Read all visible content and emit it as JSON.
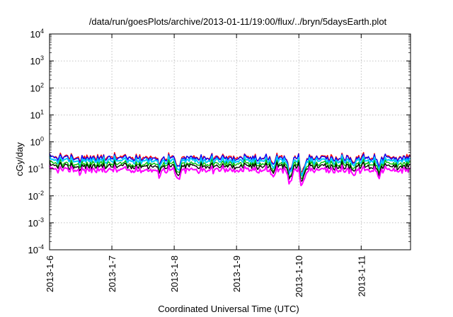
{
  "chart_data": {
    "type": "line",
    "title": "/data/run/goesPlots/archive/2013-01-11/19:00/flux/../bryn/5daysEarth.plot",
    "xlabel": "Coordinated Universal Time (UTC)",
    "ylabel": "cGy/day",
    "yscale": "log",
    "ylim": [
      0.0001,
      10000
    ],
    "xlim": [
      "2013-01-06 00:00",
      "2013-01-11 19:00"
    ],
    "y_ticks": [
      {
        "value": 0.0001,
        "base": "10",
        "exp": "-4"
      },
      {
        "value": 0.001,
        "base": "10",
        "exp": "-3"
      },
      {
        "value": 0.01,
        "base": "10",
        "exp": "-2"
      },
      {
        "value": 0.1,
        "base": "10",
        "exp": "-1"
      },
      {
        "value": 1,
        "base": "10",
        "exp": "0"
      },
      {
        "value": 10,
        "base": "10",
        "exp": "1"
      },
      {
        "value": 100,
        "base": "10",
        "exp": "2"
      },
      {
        "value": 1000,
        "base": "10",
        "exp": "3"
      },
      {
        "value": 10000,
        "base": "10",
        "exp": "4"
      }
    ],
    "x_ticks": [
      {
        "value": "2013-01-06",
        "label": "2013-1-6"
      },
      {
        "value": "2013-01-07",
        "label": "2013-1-7"
      },
      {
        "value": "2013-01-08",
        "label": "2013-1-8"
      },
      {
        "value": "2013-01-09",
        "label": "2013-1-9"
      },
      {
        "value": "2013-01-10",
        "label": "2013-1-10"
      },
      {
        "value": "2013-01-11",
        "label": "2013-1-11"
      }
    ],
    "grid": true,
    "legend": "none",
    "series": [
      {
        "color": "#ff0000",
        "base": 0.28
      },
      {
        "color": "#0000ff",
        "base": 0.26
      },
      {
        "color": "#00c8ff",
        "base": 0.21
      },
      {
        "color": "#00c000",
        "base": 0.16
      },
      {
        "color": "#000000",
        "base": 0.13
      },
      {
        "color": "#ff00ff",
        "base": 0.095
      }
    ],
    "dips": [
      {
        "x": "2013-01-06 12:00",
        "factor": 0.75
      },
      {
        "x": "2013-01-07 18:00",
        "factor": 0.55
      },
      {
        "x": "2013-01-08 01:00",
        "factor": 0.5
      },
      {
        "x": "2013-01-08 02:00",
        "factor": 0.45
      },
      {
        "x": "2013-01-09 14:00",
        "factor": 0.45
      },
      {
        "x": "2013-01-09 20:00",
        "factor": 0.3
      },
      {
        "x": "2013-01-09 21:00",
        "factor": 0.35
      },
      {
        "x": "2013-01-10 01:00",
        "factor": 0.22
      },
      {
        "x": "2013-01-10 02:00",
        "factor": 0.35
      },
      {
        "x": "2013-01-10 21:00",
        "factor": 0.6
      },
      {
        "x": "2013-01-11 07:00",
        "factor": 0.55
      }
    ]
  }
}
